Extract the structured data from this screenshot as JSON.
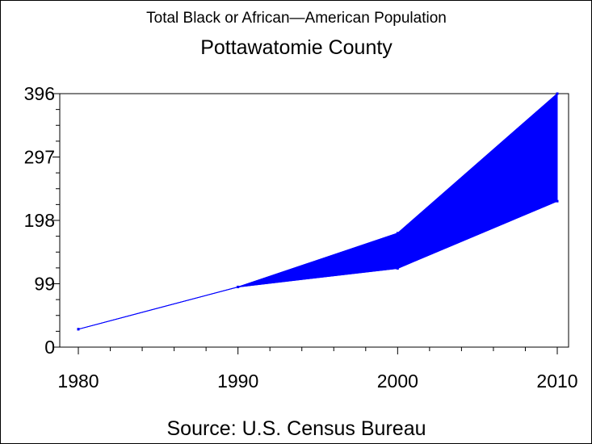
{
  "chart_data": {
    "type": "area",
    "title": "Total Black or African—American Population",
    "subtitle": "Pottawatomie County",
    "source": "Source: U.S. Census Bureau",
    "x": [
      1980,
      1990,
      2000,
      2010
    ],
    "x_tick_labels": [
      "1980",
      "1990",
      "2000",
      "2010"
    ],
    "y_tick_values": [
      0,
      99,
      198,
      297,
      396
    ],
    "y_tick_labels": [
      "0",
      "99",
      "198",
      "297",
      "396"
    ],
    "xlim": [
      1980,
      2010
    ],
    "ylim": [
      0,
      396
    ],
    "series": [
      {
        "values": [
          28,
          94,
          123,
          228
        ]
      },
      {
        "values": [
          28,
          94,
          178,
          396
        ]
      }
    ],
    "fill_color": "#0000ff",
    "line_color": "#0000ff",
    "grid": false
  }
}
